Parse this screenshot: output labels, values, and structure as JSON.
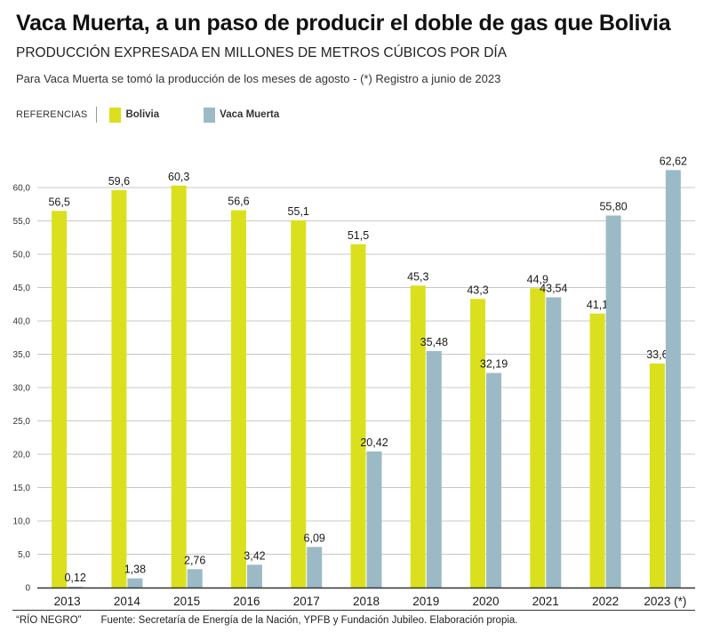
{
  "header": {
    "title": "Vaca Muerta, a un paso de producir el doble de gas que Bolivia",
    "subtitle": "PRODUCCIÓN EXPRESADA EN MILLONES DE METROS CÚBICOS POR DÍA",
    "note": "Para Vaca Muerta se tomó la producción de los meses de agosto - (*) Registro a junio de 2023"
  },
  "legend": {
    "label": "REFERENCIAS",
    "items": [
      {
        "name": "Bolivia",
        "color": "#dbe01e"
      },
      {
        "name": "Vaca Muerta",
        "color": "#9bbac6"
      }
    ]
  },
  "chart_data": {
    "type": "bar",
    "categories": [
      "2013",
      "2014",
      "2015",
      "2016",
      "2017",
      "2018",
      "2019",
      "2020",
      "2021",
      "2022",
      "2023 (*)"
    ],
    "series": [
      {
        "name": "Bolivia",
        "color": "#dbe01e",
        "values": [
          56.5,
          59.6,
          60.3,
          56.6,
          55.1,
          51.5,
          45.3,
          43.3,
          44.9,
          41.1,
          33.6
        ],
        "labels": [
          "56,5",
          "59,6",
          "60,3",
          "56,6",
          "55,1",
          "51,5",
          "45,3",
          "43,3",
          "44,9",
          "41,1",
          "33,6"
        ]
      },
      {
        "name": "Vaca Muerta",
        "color": "#9bbac6",
        "values": [
          0.12,
          1.38,
          2.76,
          3.42,
          6.09,
          20.42,
          35.48,
          32.19,
          43.54,
          55.8,
          62.62
        ],
        "labels": [
          "0,12",
          "1,38",
          "2,76",
          "3,42",
          "6,09",
          "20,42",
          "35,48",
          "32,19",
          "43,54",
          "55,80",
          "62,62"
        ]
      }
    ],
    "ylim": [
      0,
      60
    ],
    "yticks": [
      0,
      5,
      10,
      15,
      20,
      25,
      30,
      35,
      40,
      45,
      50,
      55,
      60
    ],
    "ytick_labels": [
      "0",
      "5,0",
      "10,0",
      "15,0",
      "20,0",
      "25,0",
      "30,0",
      "35,0",
      "40,0",
      "45,0",
      "50,0",
      "55,0",
      "60,0"
    ],
    "grid": true,
    "legend_position": "top-left"
  },
  "footer": {
    "credit": "“RÍO NEGRO”",
    "source": "Fuente: Secretaría de Energía de la Nación, YPFB y Fundación Jubileo. Elaboración propia."
  }
}
